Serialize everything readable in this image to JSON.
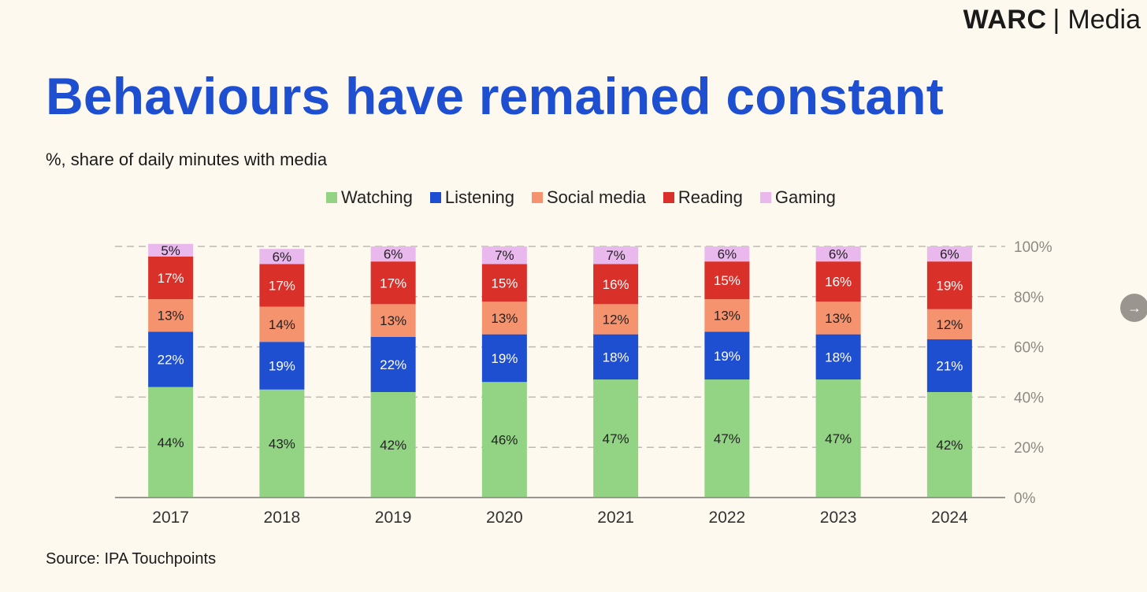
{
  "brand": {
    "name": "WARC",
    "separator": "|",
    "suffix": "Media"
  },
  "title": "Behaviours have remained constant",
  "subtitle": "%, share of daily minutes with media",
  "source": "Source: IPA Touchpoints",
  "nav": {
    "next_glyph": "→"
  },
  "colors": {
    "title": "#1f4fd1",
    "background": "#fdf9ee",
    "Watching": "#93d484",
    "Listening": "#1f4fd1",
    "Social media": "#f6936f",
    "Reading": "#d9302a",
    "Gaming": "#e9b9ee"
  },
  "chart_data": {
    "type": "bar",
    "stacked": true,
    "title": "Behaviours have remained constant",
    "ylabel": "%, share of daily minutes with media",
    "categories": [
      "2017",
      "2018",
      "2019",
      "2020",
      "2021",
      "2022",
      "2023",
      "2024"
    ],
    "series": [
      {
        "name": "Watching",
        "values": [
          44,
          43,
          42,
          46,
          47,
          47,
          47,
          42
        ]
      },
      {
        "name": "Listening",
        "values": [
          22,
          19,
          22,
          19,
          18,
          19,
          18,
          21
        ]
      },
      {
        "name": "Social media",
        "values": [
          13,
          14,
          13,
          13,
          12,
          13,
          13,
          12
        ]
      },
      {
        "name": "Reading",
        "values": [
          17,
          17,
          17,
          15,
          16,
          15,
          16,
          19
        ]
      },
      {
        "name": "Gaming",
        "values": [
          5,
          6,
          6,
          7,
          7,
          6,
          6,
          6
        ]
      }
    ],
    "y_ticks": [
      "0%",
      "20%",
      "40%",
      "60%",
      "80%",
      "100%"
    ],
    "ylim": [
      0,
      100
    ],
    "y_axis_side": "right",
    "grid": true,
    "legend_position": "top"
  }
}
